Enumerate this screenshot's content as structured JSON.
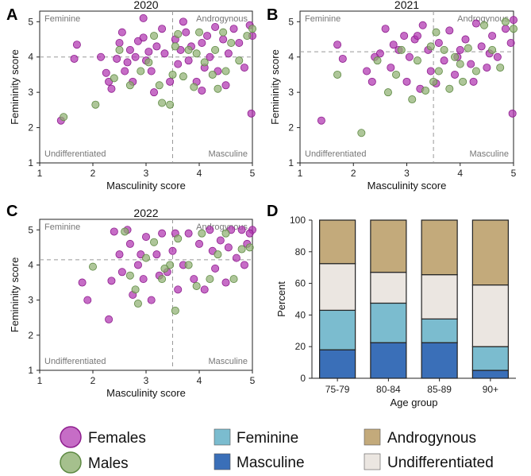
{
  "colors": {
    "female": "#b034b0",
    "female_stroke": "#8e1e8e",
    "male": "#8fb071",
    "male_stroke": "#5e8a43",
    "feminine": "#7bbccf",
    "masculine": "#3a6fb8",
    "androgynous": "#c3aa7b",
    "undifferentiated": "#ebe6e1"
  },
  "panel_letters": [
    "A",
    "B",
    "C",
    "D"
  ],
  "chart_data": [
    {
      "type": "scatter",
      "panel": "A",
      "title": "2020",
      "xlabel": "Masculinity score",
      "ylabel": "Femininity score",
      "xlim": [
        1,
        5
      ],
      "ylim": [
        1,
        5.3
      ],
      "xticks": [
        "1",
        "2",
        "3",
        "4",
        "5"
      ],
      "yticks": [
        "1",
        "2",
        "3",
        "4",
        "5"
      ],
      "ref_x": 3.5,
      "ref_y": 4.0,
      "quadrant_labels": {
        "top_left": "Feminine",
        "top_right": "Androgynous",
        "bottom_left": "Undifferentiated",
        "bottom_right": "Masculine"
      },
      "series": [
        {
          "name": "Females",
          "points": [
            [
              1.4,
              2.2
            ],
            [
              1.7,
              4.35
            ],
            [
              1.65,
              3.95
            ],
            [
              2.15,
              4.0
            ],
            [
              2.25,
              3.55
            ],
            [
              2.3,
              3.3
            ],
            [
              2.35,
              3.1
            ],
            [
              2.45,
              3.95
            ],
            [
              2.55,
              4.7
            ],
            [
              2.6,
              3.6
            ],
            [
              2.7,
              4.2
            ],
            [
              2.75,
              3.3
            ],
            [
              2.8,
              4.0
            ],
            [
              2.85,
              4.45
            ],
            [
              2.95,
              5.1
            ],
            [
              3.0,
              3.9
            ],
            [
              3.05,
              4.15
            ],
            [
              3.1,
              3.6
            ],
            [
              3.15,
              3.0
            ],
            [
              3.2,
              4.3
            ],
            [
              3.3,
              4.8
            ],
            [
              3.35,
              4.1
            ],
            [
              3.45,
              3.3
            ],
            [
              3.55,
              4.5
            ],
            [
              3.6,
              3.8
            ],
            [
              3.7,
              5.0
            ],
            [
              3.8,
              3.9
            ],
            [
              3.85,
              4.3
            ],
            [
              3.95,
              3.3
            ],
            [
              4.05,
              4.4
            ],
            [
              4.1,
              3.7
            ],
            [
              4.15,
              4.6
            ],
            [
              4.2,
              4.0
            ],
            [
              4.3,
              4.85
            ],
            [
              4.35,
              3.6
            ],
            [
              4.45,
              4.5
            ],
            [
              4.5,
              3.2
            ],
            [
              4.55,
              4.1
            ],
            [
              4.65,
              4.8
            ],
            [
              4.75,
              4.4
            ],
            [
              4.85,
              3.7
            ],
            [
              4.95,
              4.9
            ],
            [
              5.0,
              4.6
            ],
            [
              4.98,
              2.4
            ],
            [
              2.5,
              4.4
            ],
            [
              3.65,
              4.2
            ],
            [
              4.05,
              3.05
            ],
            [
              3.75,
              4.7
            ],
            [
              2.95,
              4.55
            ],
            [
              2.65,
              3.85
            ]
          ]
        },
        {
          "name": "Males",
          "points": [
            [
              1.45,
              2.3
            ],
            [
              2.05,
              2.65
            ],
            [
              2.4,
              3.4
            ],
            [
              2.5,
              4.2
            ],
            [
              2.7,
              3.2
            ],
            [
              2.9,
              3.6
            ],
            [
              3.05,
              3.85
            ],
            [
              3.15,
              4.6
            ],
            [
              3.25,
              3.2
            ],
            [
              3.3,
              2.7
            ],
            [
              3.45,
              2.65
            ],
            [
              3.5,
              3.5
            ],
            [
              3.6,
              4.65
            ],
            [
              3.7,
              3.45
            ],
            [
              3.8,
              4.2
            ],
            [
              3.9,
              3.15
            ],
            [
              4.0,
              4.7
            ],
            [
              4.1,
              3.85
            ],
            [
              4.25,
              3.5
            ],
            [
              4.3,
              4.2
            ],
            [
              4.45,
              4.7
            ],
            [
              4.5,
              3.6
            ],
            [
              4.6,
              4.4
            ],
            [
              4.75,
              3.9
            ],
            [
              4.9,
              4.6
            ],
            [
              5.0,
              4.8
            ],
            [
              4.35,
              3.1
            ],
            [
              3.55,
              4.3
            ],
            [
              3.95,
              4.1
            ]
          ]
        }
      ]
    },
    {
      "type": "scatter",
      "panel": "B",
      "title": "2021",
      "xlabel": "Masculinity score",
      "ylabel": "Femininity score",
      "xlim": [
        1,
        5
      ],
      "ylim": [
        1,
        5.3
      ],
      "xticks": [
        "1",
        "2",
        "3",
        "4",
        "5"
      ],
      "yticks": [
        "1",
        "2",
        "3",
        "4",
        "5"
      ],
      "ref_x": 3.5,
      "ref_y": 4.15,
      "quadrant_labels": {
        "top_left": "Feminine",
        "top_right": "Androgynous",
        "bottom_left": "Undifferentiated",
        "bottom_right": "Masculine"
      },
      "series": [
        {
          "name": "Females",
          "points": [
            [
              1.4,
              2.2
            ],
            [
              1.7,
              4.35
            ],
            [
              1.8,
              3.95
            ],
            [
              2.25,
              3.6
            ],
            [
              2.35,
              3.3
            ],
            [
              2.5,
              4.1
            ],
            [
              2.6,
              4.8
            ],
            [
              2.7,
              3.7
            ],
            [
              2.85,
              4.2
            ],
            [
              2.95,
              4.6
            ],
            [
              3.0,
              3.3
            ],
            [
              3.05,
              4.0
            ],
            [
              3.15,
              4.5
            ],
            [
              3.25,
              3.1
            ],
            [
              3.3,
              4.9
            ],
            [
              3.4,
              4.2
            ],
            [
              3.45,
              3.6
            ],
            [
              3.6,
              4.4
            ],
            [
              3.7,
              3.9
            ],
            [
              3.8,
              4.75
            ],
            [
              3.9,
              3.5
            ],
            [
              4.0,
              4.2
            ],
            [
              4.1,
              4.5
            ],
            [
              4.2,
              3.8
            ],
            [
              4.3,
              4.95
            ],
            [
              4.4,
              4.3
            ],
            [
              4.5,
              3.7
            ],
            [
              4.6,
              4.6
            ],
            [
              4.7,
              4.0
            ],
            [
              4.85,
              4.8
            ],
            [
              4.95,
              4.4
            ],
            [
              5.0,
              5.05
            ],
            [
              4.98,
              2.4
            ],
            [
              2.75,
              4.35
            ],
            [
              3.55,
              3.25
            ],
            [
              2.4,
              4.0
            ],
            [
              3.95,
              4.0
            ],
            [
              4.25,
              3.3
            ],
            [
              4.55,
              4.1
            ],
            [
              3.2,
              4.6
            ]
          ]
        },
        {
          "name": "Males",
          "points": [
            [
              1.7,
              3.5
            ],
            [
              2.15,
              1.85
            ],
            [
              2.45,
              3.9
            ],
            [
              2.65,
              3.0
            ],
            [
              2.8,
              3.5
            ],
            [
              2.9,
              4.2
            ],
            [
              3.1,
              2.8
            ],
            [
              3.2,
              3.9
            ],
            [
              3.35,
              3.05
            ],
            [
              3.45,
              4.3
            ],
            [
              3.5,
              3.3
            ],
            [
              3.6,
              3.6
            ],
            [
              3.7,
              4.2
            ],
            [
              3.8,
              3.1
            ],
            [
              3.9,
              4.0
            ],
            [
              4.05,
              3.3
            ],
            [
              4.15,
              4.25
            ],
            [
              4.3,
              3.6
            ],
            [
              4.45,
              4.9
            ],
            [
              4.6,
              4.2
            ],
            [
              4.75,
              3.7
            ],
            [
              4.85,
              5.0
            ],
            [
              5.0,
              4.8
            ],
            [
              3.55,
              4.7
            ],
            [
              4.0,
              3.8
            ]
          ]
        }
      ]
    },
    {
      "type": "scatter",
      "panel": "C",
      "title": "2022",
      "xlabel": "Masculinity score",
      "ylabel": "Femininity score",
      "xlim": [
        1,
        5
      ],
      "ylim": [
        1,
        5.3
      ],
      "xticks": [
        "1",
        "2",
        "3",
        "4",
        "5"
      ],
      "yticks": [
        "1",
        "2",
        "3",
        "4",
        "5"
      ],
      "ref_x": 3.5,
      "ref_y": 4.15,
      "quadrant_labels": {
        "top_left": "Feminine",
        "top_right": "Androgynous",
        "bottom_left": "Undifferentiated",
        "bottom_right": "Masculine"
      },
      "series": [
        {
          "name": "Females",
          "points": [
            [
              1.8,
              3.5
            ],
            [
              1.9,
              3.0
            ],
            [
              2.3,
              2.45
            ],
            [
              2.35,
              3.55
            ],
            [
              2.4,
              4.95
            ],
            [
              2.5,
              4.3
            ],
            [
              2.55,
              3.8
            ],
            [
              2.65,
              5.0
            ],
            [
              2.7,
              4.6
            ],
            [
              2.75,
              3.15
            ],
            [
              2.85,
              4.0
            ],
            [
              2.95,
              3.6
            ],
            [
              3.0,
              4.8
            ],
            [
              3.1,
              3.0
            ],
            [
              3.2,
              4.3
            ],
            [
              3.3,
              4.9
            ],
            [
              3.4,
              3.8
            ],
            [
              3.5,
              4.4
            ],
            [
              3.6,
              3.3
            ],
            [
              3.7,
              4.0
            ],
            [
              3.8,
              4.9
            ],
            [
              3.9,
              3.6
            ],
            [
              4.0,
              4.6
            ],
            [
              4.1,
              3.3
            ],
            [
              4.2,
              5.0
            ],
            [
              4.3,
              3.9
            ],
            [
              4.4,
              4.7
            ],
            [
              4.5,
              3.5
            ],
            [
              4.6,
              5.0
            ],
            [
              4.7,
              4.2
            ],
            [
              4.8,
              5.0
            ],
            [
              4.9,
              4.6
            ],
            [
              5.0,
              5.0
            ],
            [
              4.95,
              4.9
            ],
            [
              4.85,
              4.0
            ],
            [
              4.55,
              4.5
            ],
            [
              3.25,
              3.7
            ],
            [
              2.9,
              4.3
            ],
            [
              3.55,
              4.9
            ],
            [
              4.25,
              4.4
            ]
          ]
        },
        {
          "name": "Males",
          "points": [
            [
              2.0,
              3.95
            ],
            [
              2.6,
              4.95
            ],
            [
              2.8,
              3.3
            ],
            [
              2.85,
              2.9
            ],
            [
              3.0,
              4.2
            ],
            [
              3.15,
              4.65
            ],
            [
              3.3,
              3.6
            ],
            [
              3.45,
              4.0
            ],
            [
              3.55,
              2.7
            ],
            [
              3.6,
              4.75
            ],
            [
              3.8,
              4.0
            ],
            [
              3.95,
              3.4
            ],
            [
              4.05,
              4.9
            ],
            [
              4.2,
              3.6
            ],
            [
              4.35,
              4.3
            ],
            [
              4.5,
              4.9
            ],
            [
              4.65,
              3.6
            ],
            [
              4.8,
              4.45
            ],
            [
              4.95,
              4.5
            ],
            [
              3.35,
              3.9
            ],
            [
              2.7,
              3.7
            ]
          ]
        }
      ]
    },
    {
      "type": "bar",
      "stacked": true,
      "panel": "D",
      "xlabel": "Age group",
      "ylabel": "Percent",
      "ylim": [
        0,
        100
      ],
      "yticks": [
        "0",
        "20",
        "40",
        "60",
        "80",
        "100"
      ],
      "categories": [
        "75-79",
        "80-84",
        "85-89",
        "90+"
      ],
      "series": [
        {
          "name": "Masculine",
          "values": [
            18,
            22.5,
            22.5,
            5
          ]
        },
        {
          "name": "Feminine",
          "values": [
            25,
            25,
            15,
            15
          ]
        },
        {
          "name": "Undifferentiated",
          "values": [
            29.5,
            19.5,
            28,
            39
          ]
        },
        {
          "name": "Androgynous",
          "values": [
            27.5,
            33,
            34.5,
            41
          ]
        }
      ]
    }
  ],
  "legend": {
    "females": "Females",
    "males": "Males",
    "feminine": "Feminine",
    "masculine": "Masculine",
    "androgynous": "Androgynous",
    "undifferentiated": "Undifferentiated"
  }
}
